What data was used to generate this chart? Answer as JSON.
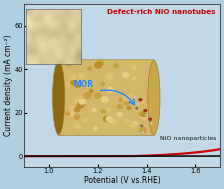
{
  "background_color": "#b0cfe0",
  "plot_bg_color": "#c0d8e8",
  "xlim": [
    0.9,
    1.7
  ],
  "ylim": [
    -5,
    70
  ],
  "xlabel": "Potential (V vs.RHE)",
  "ylabel": "Current density (mA cm⁻²)",
  "xticks": [
    1.0,
    1.2,
    1.4,
    1.6
  ],
  "yticks": [
    0,
    20,
    40,
    60
  ],
  "red_label": "Defect-rich NiO nanotubes",
  "black_label": "NiO nanoparticles",
  "red_color": "#cc0000",
  "black_color": "#111111",
  "label_fontsize": 5.2,
  "axis_fontsize": 5.5,
  "tick_fontsize": 4.8,
  "tube_color": "#d4b86a",
  "tube_dark": "#a08030",
  "tube_shadow": "#8b6914",
  "mor_color": "#2288ff",
  "sem_cmap": "bone"
}
